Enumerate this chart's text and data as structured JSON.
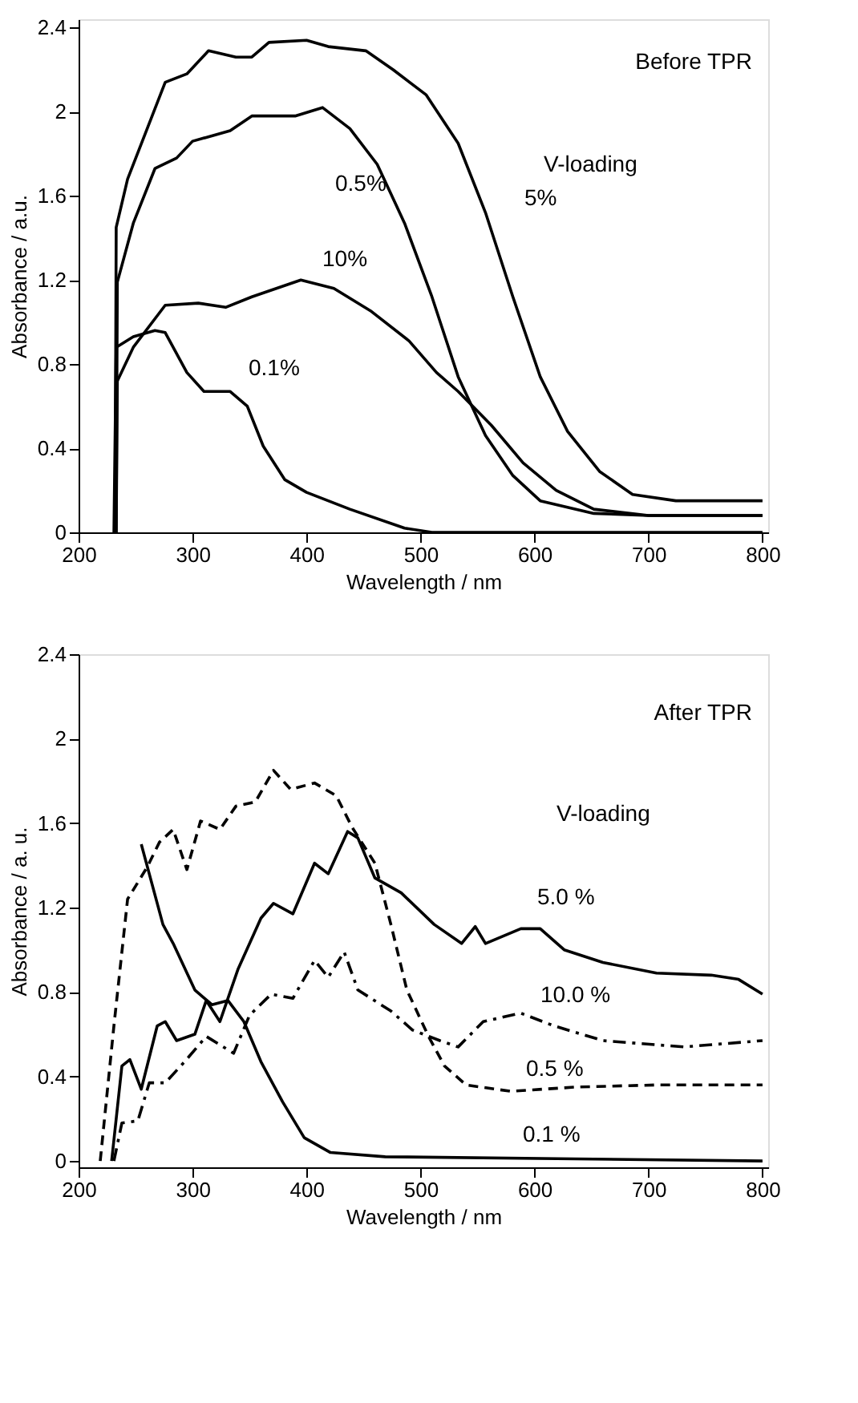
{
  "chart_data": [
    {
      "type": "line",
      "xlabel": "Wavelength / nm",
      "ylabel": "Absorbance / a.u.",
      "xlim": [
        200,
        805
      ],
      "ylim": [
        0,
        2.44
      ],
      "xticks": [
        200,
        300,
        400,
        500,
        600,
        700,
        800
      ],
      "yticks": [
        0,
        0.4,
        0.8,
        1.2,
        1.6,
        2,
        2.4
      ],
      "grid": false,
      "series": [
        {
          "name": "5%",
          "color": "#000000",
          "line_style": "solid",
          "x": [
            232,
            233,
            243,
            276,
            295,
            314,
            338,
            352,
            367,
            400,
            419,
            452,
            476,
            505,
            533,
            557,
            581,
            605,
            629,
            657,
            686,
            724,
            800
          ],
          "values": [
            0,
            1.45,
            1.68,
            2.14,
            2.18,
            2.29,
            2.26,
            2.26,
            2.33,
            2.34,
            2.31,
            2.29,
            2.2,
            2.08,
            1.85,
            1.52,
            1.12,
            0.74,
            0.48,
            0.29,
            0.18,
            0.15,
            0.15
          ]
        },
        {
          "name": "0.5%",
          "color": "#000000",
          "line_style": "solid",
          "x": [
            233,
            234,
            248,
            267,
            286,
            300,
            333,
            352,
            390,
            414,
            438,
            462,
            486,
            510,
            533,
            557,
            581,
            605,
            652,
            700,
            800
          ],
          "values": [
            0,
            1.19,
            1.47,
            1.73,
            1.78,
            1.86,
            1.91,
            1.98,
            1.98,
            2.02,
            1.92,
            1.75,
            1.47,
            1.12,
            0.74,
            0.46,
            0.27,
            0.15,
            0.09,
            0.08,
            0.08
          ]
        },
        {
          "name": "10%",
          "color": "#000000",
          "line_style": "solid",
          "x": [
            233,
            234,
            248,
            276,
            305,
            329,
            352,
            395,
            424,
            457,
            490,
            514,
            533,
            562,
            590,
            619,
            652,
            700,
            800
          ],
          "values": [
            0,
            0.72,
            0.88,
            1.08,
            1.09,
            1.07,
            1.12,
            1.2,
            1.16,
            1.05,
            0.91,
            0.76,
            0.67,
            0.51,
            0.33,
            0.2,
            0.11,
            0.08,
            0.08
          ]
        },
        {
          "name": "0.1%",
          "color": "#000000",
          "line_style": "solid",
          "x": [
            231,
            233,
            248,
            267,
            276,
            295,
            310,
            333,
            348,
            362,
            381,
            400,
            438,
            486,
            510,
            800
          ],
          "values": [
            0,
            0.88,
            0.93,
            0.96,
            0.95,
            0.76,
            0.67,
            0.67,
            0.6,
            0.41,
            0.25,
            0.19,
            0.11,
            0.02,
            0,
            0
          ]
        }
      ],
      "annotations": [
        "Before TPR",
        "V-loading"
      ]
    },
    {
      "type": "line",
      "xlabel": "Wavelength / nm",
      "ylabel": "Absorbance / a. u.",
      "xlim": [
        200,
        805
      ],
      "ylim": [
        -0.03,
        2.4
      ],
      "xticks": [
        200,
        300,
        400,
        500,
        600,
        700,
        800
      ],
      "yticks": [
        0,
        0.4,
        0.8,
        1.2,
        1.6,
        2,
        2.4
      ],
      "grid": false,
      "series": [
        {
          "name": "0.1 %",
          "color": "#000000",
          "line_style": "solid",
          "x": [
            255,
            274,
            283,
            302,
            317,
            331,
            345,
            360,
            379,
            398,
            421,
            469,
            636,
            800
          ],
          "values": [
            1.5,
            1.12,
            1.03,
            0.81,
            0.74,
            0.76,
            0.66,
            0.47,
            0.28,
            0.11,
            0.04,
            0.02,
            0.01,
            0
          ]
        },
        {
          "name": "5.0 %",
          "color": "#000000",
          "line_style": "solid",
          "x": [
            229,
            238,
            245,
            255,
            269,
            276,
            286,
            302,
            312,
            324,
            340,
            360,
            371,
            388,
            407,
            419,
            436,
            445,
            460,
            483,
            512,
            536,
            548,
            557,
            588,
            605,
            626,
            660,
            707,
            755,
            779,
            800
          ],
          "values": [
            0,
            0.45,
            0.48,
            0.34,
            0.64,
            0.66,
            0.57,
            0.6,
            0.76,
            0.66,
            0.91,
            1.15,
            1.22,
            1.17,
            1.41,
            1.36,
            1.56,
            1.53,
            1.34,
            1.27,
            1.12,
            1.03,
            1.11,
            1.03,
            1.1,
            1.1,
            1.0,
            0.94,
            0.89,
            0.88,
            0.86,
            0.79
          ]
        },
        {
          "name": "0.5 %",
          "color": "#000000",
          "line_style": "dashed",
          "x": [
            219,
            231,
            243,
            260,
            271,
            283,
            295,
            307,
            324,
            338,
            355,
            371,
            386,
            407,
            426,
            440,
            460,
            474,
            488,
            507,
            521,
            540,
            579,
            636,
            707,
            800
          ],
          "values": [
            0,
            0.64,
            1.24,
            1.39,
            1.51,
            1.57,
            1.38,
            1.61,
            1.57,
            1.68,
            1.7,
            1.85,
            1.76,
            1.79,
            1.73,
            1.58,
            1.41,
            1.12,
            0.81,
            0.59,
            0.45,
            0.36,
            0.33,
            0.35,
            0.36,
            0.36
          ]
        },
        {
          "name": "10.0 %",
          "color": "#000000",
          "line_style": "dashdot",
          "x": [
            231,
            238,
            252,
            262,
            276,
            293,
            312,
            336,
            350,
            369,
            388,
            407,
            419,
            433,
            445,
            474,
            493,
            517,
            533,
            555,
            588,
            617,
            660,
            731,
            800
          ],
          "values": [
            0,
            0.18,
            0.19,
            0.37,
            0.37,
            0.47,
            0.59,
            0.51,
            0.69,
            0.79,
            0.77,
            0.95,
            0.87,
            0.99,
            0.81,
            0.71,
            0.62,
            0.57,
            0.54,
            0.66,
            0.7,
            0.64,
            0.57,
            0.54,
            0.57
          ]
        }
      ],
      "annotations": [
        "After TPR",
        "V-loading"
      ]
    }
  ]
}
